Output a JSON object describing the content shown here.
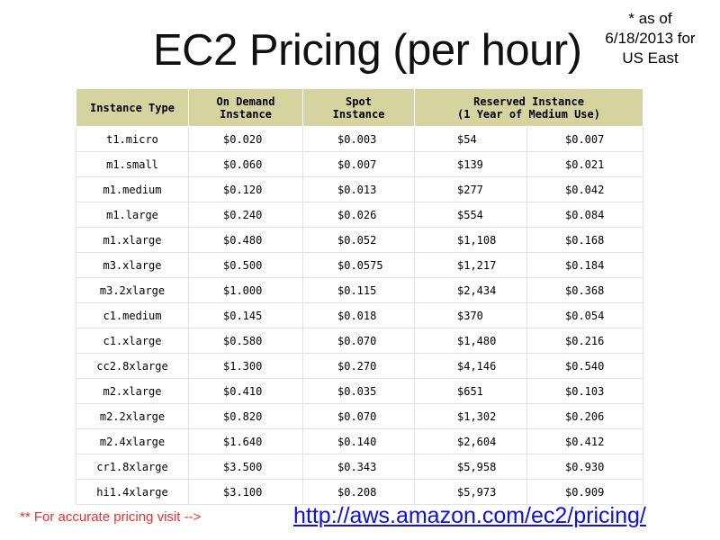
{
  "slide": {
    "title": "EC2 Pricing (per hour)",
    "note_lines": [
      "* as of",
      "6/18/2013 for",
      "US East"
    ]
  },
  "table": {
    "headers": {
      "instance_type": [
        "Instance Type"
      ],
      "on_demand": [
        "On Demand",
        "Instance"
      ],
      "spot": [
        "Spot",
        "Instance"
      ],
      "reserved": [
        "Reserved Instance",
        "(1 Year of Medium Use)"
      ]
    },
    "rows": [
      [
        "t1.micro",
        "$0.020",
        "$0.003",
        "$54",
        "$0.007"
      ],
      [
        "m1.small",
        "$0.060",
        "$0.007",
        "$139",
        "$0.021"
      ],
      [
        "m1.medium",
        "$0.120",
        "$0.013",
        "$277",
        "$0.042"
      ],
      [
        "m1.large",
        "$0.240",
        "$0.026",
        "$554",
        "$0.084"
      ],
      [
        "m1.xlarge",
        "$0.480",
        "$0.052",
        "$1,108",
        "$0.168"
      ],
      [
        "m3.xlarge",
        "$0.500",
        "$0.0575",
        "$1,217",
        "$0.184"
      ],
      [
        "m3.2xlarge",
        "$1.000",
        "$0.115",
        "$2,434",
        "$0.368"
      ],
      [
        "c1.medium",
        "$0.145",
        "$0.018",
        "$370",
        "$0.054"
      ],
      [
        "c1.xlarge",
        "$0.580",
        "$0.070",
        "$1,480",
        "$0.216"
      ],
      [
        "cc2.8xlarge",
        "$1.300",
        "$0.270",
        "$4,146",
        "$0.540"
      ],
      [
        "m2.xlarge",
        "$0.410",
        "$0.035",
        "$651",
        "$0.103"
      ],
      [
        "m2.2xlarge",
        "$0.820",
        "$0.070",
        "$1,302",
        "$0.206"
      ],
      [
        "m2.4xlarge",
        "$1.640",
        "$0.140",
        "$2,604",
        "$0.412"
      ],
      [
        "cr1.8xlarge",
        "$3.500",
        "$0.343",
        "$5,958",
        "$0.930"
      ],
      [
        "hi1.4xlarge",
        "$3.100",
        "$0.208",
        "$5,973",
        "$0.909"
      ]
    ]
  },
  "footer": {
    "note": "** For accurate pricing visit -->",
    "link": "http://aws.amazon.com/ec2/pricing/"
  },
  "colors": {
    "header_bg": "#d5d4a1",
    "footer_note": "#e8312a",
    "link": "#1010e0"
  }
}
